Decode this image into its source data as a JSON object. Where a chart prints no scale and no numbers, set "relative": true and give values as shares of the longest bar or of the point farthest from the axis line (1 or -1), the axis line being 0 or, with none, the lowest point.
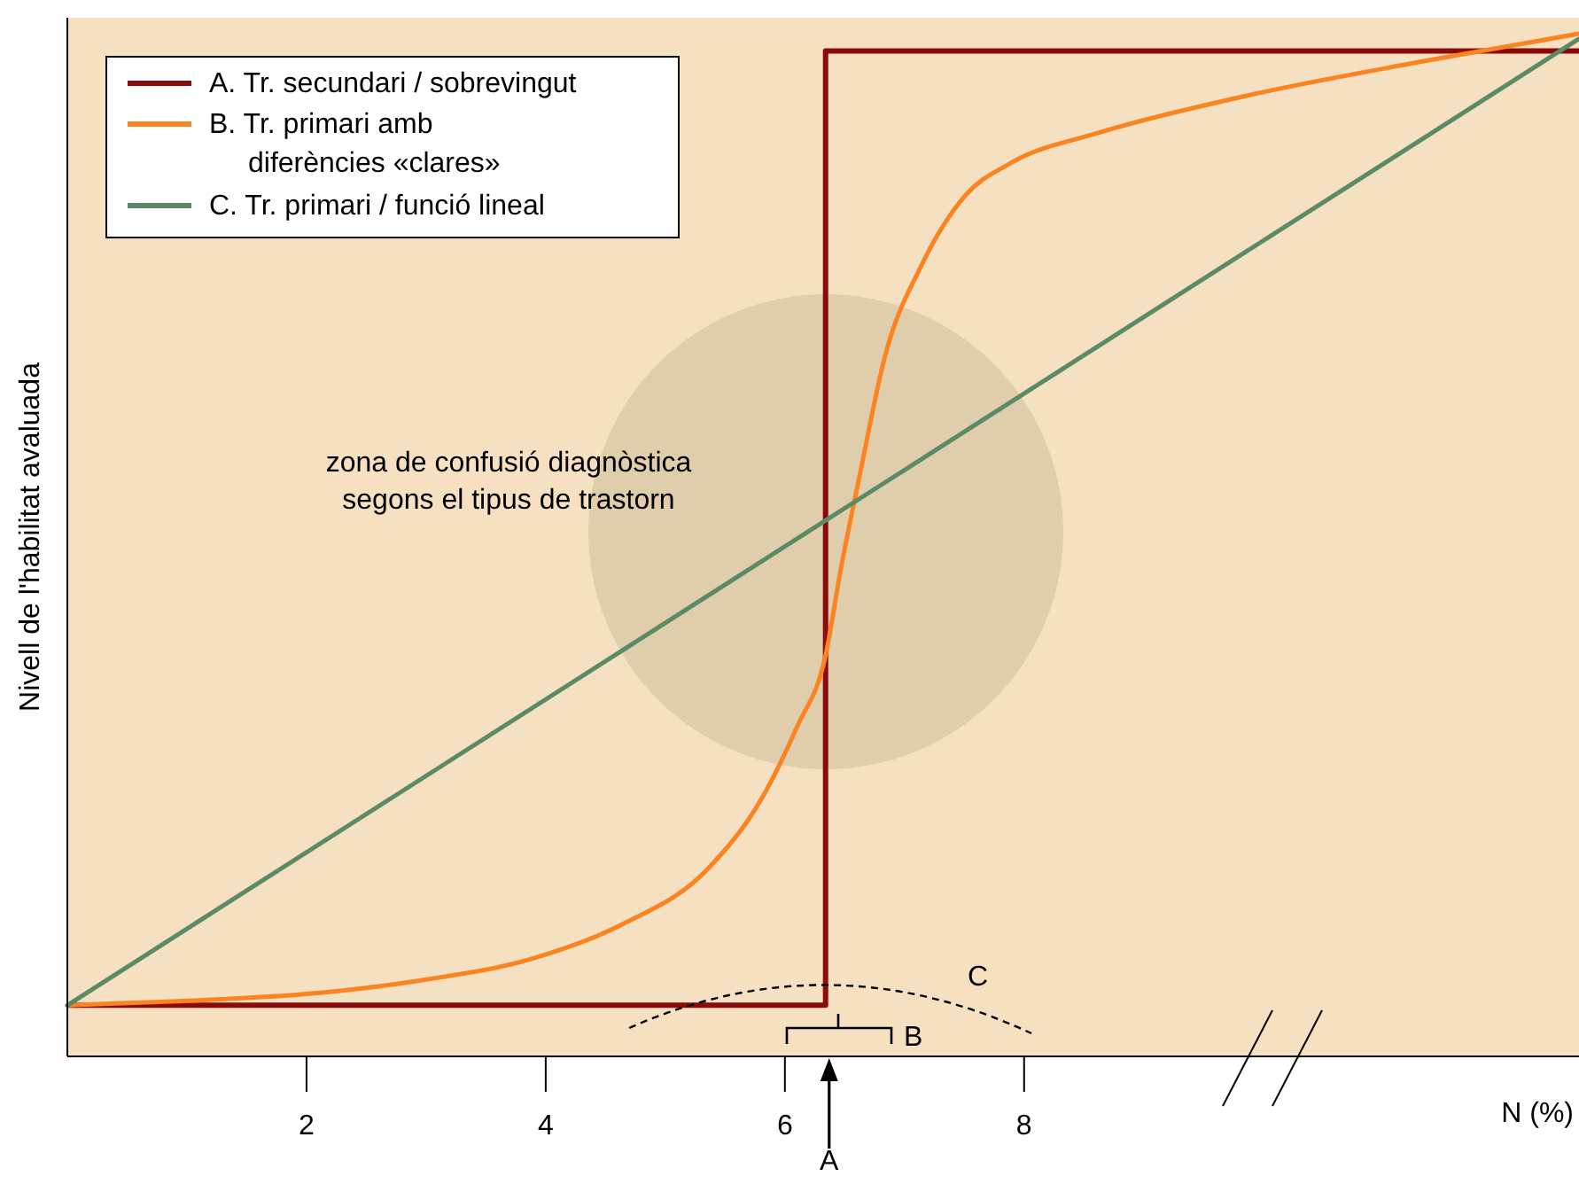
{
  "chart_data": {
    "type": "line",
    "relative": true,
    "xlabel": "N (%)",
    "ylabel": "Nivell de l'habilitat avaluada",
    "xlim": [
      0,
      12.64
    ],
    "xticks": [
      2,
      4,
      6,
      8
    ],
    "legend": "top left",
    "grid": false,
    "series": [
      {
        "name": "A. Tr. secundari / sobrevingut",
        "color": "#8b0a0a",
        "type": "step",
        "x": [
          0,
          6.34,
          12.64
        ],
        "values": [
          0.05,
          0.983,
          0.983
        ]
      },
      {
        "name": "B. Tr. primari amb\ndiferències «clares»",
        "color": "#fb8422",
        "x": [
          0,
          0.92,
          2,
          2.99,
          3.87,
          4.62,
          5.36,
          5.81,
          6.1,
          6.34,
          6.47,
          6.62,
          6.84,
          7.14,
          7.51,
          7.88,
          8.62,
          9.81,
          11.29,
          12.64
        ],
        "values": [
          0.05,
          0.054,
          0.061,
          0.075,
          0.095,
          0.128,
          0.184,
          0.253,
          0.322,
          0.392,
          0.478,
          0.565,
          0.686,
          0.773,
          0.842,
          0.873,
          0.903,
          0.938,
          0.972,
          1
        ]
      },
      {
        "name": "C. Tr. primari / funció lineal",
        "color": "#5c8a66",
        "x": [
          0,
          12.64
        ],
        "values": [
          0.05,
          0.995
        ]
      }
    ],
    "annotations": [
      "zona de confusió diagnòstica\nsegons el tipus de trastorn",
      "A",
      "B",
      "C"
    ]
  }
}
